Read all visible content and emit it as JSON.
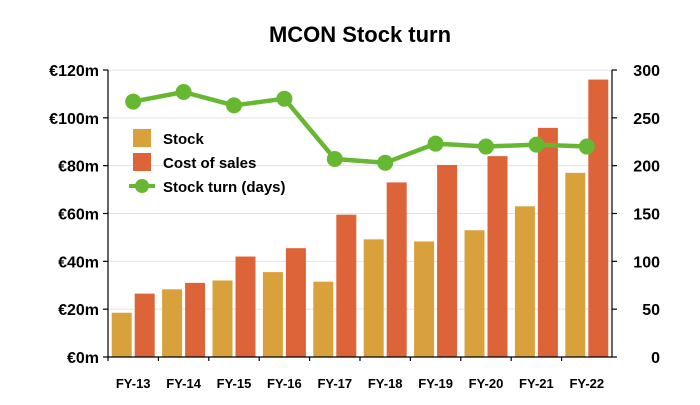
{
  "chart_data": {
    "type": "bar",
    "title": "MCON Stock turn",
    "categories": [
      "FY-13",
      "FY-14",
      "FY-15",
      "FY-16",
      "FY-17",
      "FY-18",
      "FY-19",
      "FY-20",
      "FY-21",
      "FY-22"
    ],
    "series": [
      {
        "name": "Stock",
        "type": "bar",
        "axis": "left",
        "color": "#d9a13b",
        "values": [
          18.5,
          28.3,
          32.0,
          35.5,
          31.5,
          49.2,
          48.3,
          53.0,
          63.0,
          77.0
        ]
      },
      {
        "name": "Cost of sales",
        "type": "bar",
        "axis": "left",
        "color": "#dd6438",
        "values": [
          26.5,
          31.0,
          42.0,
          45.5,
          59.5,
          73.0,
          80.3,
          84.0,
          95.8,
          116.0
        ]
      },
      {
        "name": "Stock turn (days)",
        "type": "line",
        "axis": "right",
        "color": "#66b832",
        "values": [
          267,
          277,
          263,
          270,
          207,
          203,
          223,
          220,
          222,
          220
        ]
      }
    ],
    "y_left": {
      "min": 0,
      "max": 120,
      "step": 20,
      "prefix": "€",
      "suffix": "m"
    },
    "y_right": {
      "min": 0,
      "max": 300,
      "step": 50
    },
    "grid": true,
    "legend_position": "top-left"
  }
}
